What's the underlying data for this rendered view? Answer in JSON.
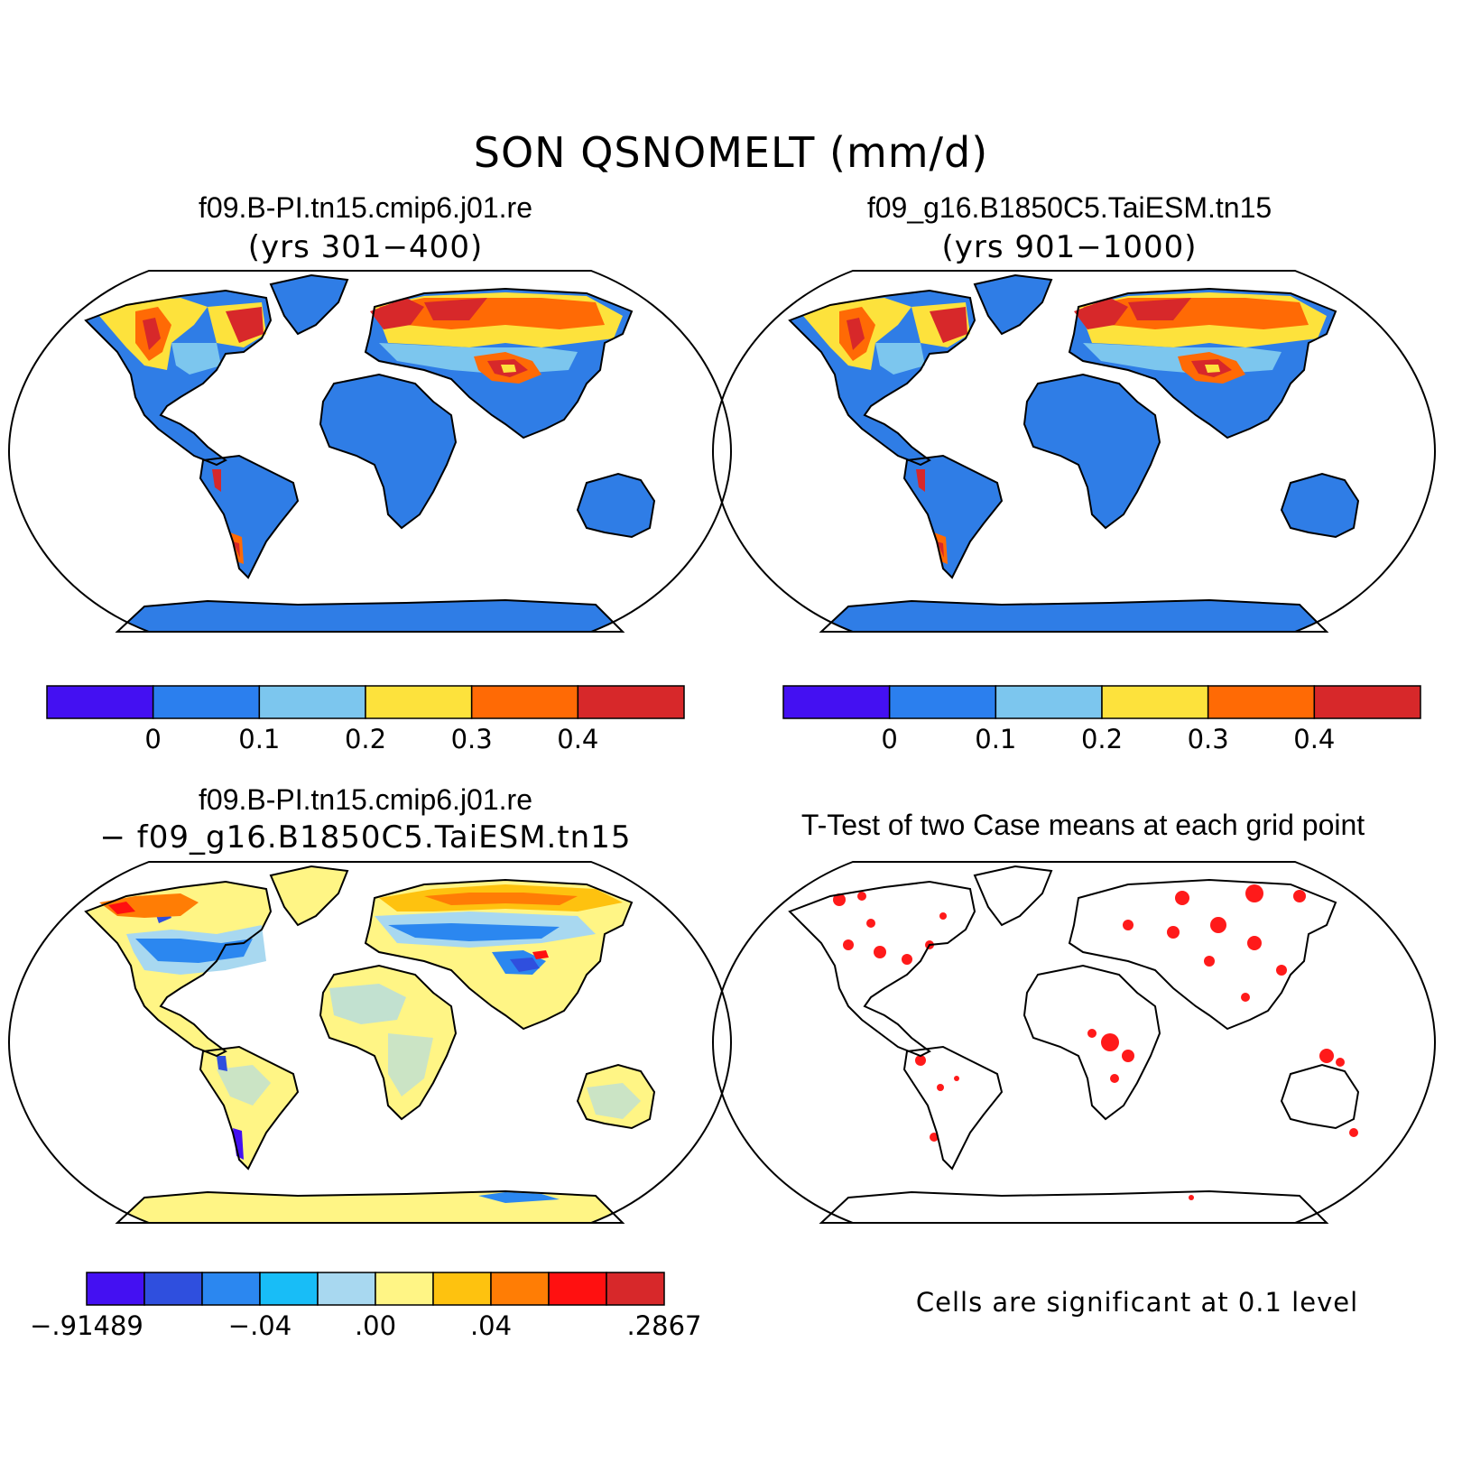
{
  "title": "SON QSNOMELT (mm/d)",
  "panels": [
    {
      "id": "case1",
      "title": "f09.B-PI.tn15.cmip6.j01.re",
      "subtitle": "(yrs 301−400)"
    },
    {
      "id": "case2",
      "title": "f09_g16.B1850C5.TaiESM.tn15",
      "subtitle": "(yrs 901−1000)"
    },
    {
      "id": "diff",
      "title": "f09.B-PI.tn15.cmip6.j01.re",
      "subtitle": "− f09_g16.B1850C5.TaiESM.tn15"
    },
    {
      "id": "ttest",
      "title": "T-Test of two Case means at each grid point",
      "note": "Cells are significant at 0.1 level"
    }
  ],
  "colorbar_abs": {
    "colors": [
      "#4410f2",
      "#2b7fee",
      "#7cc6ee",
      "#fde23c",
      "#ff6a05",
      "#d7282a"
    ],
    "tick_labels": [
      "0",
      "0.1",
      "0.2",
      "0.3",
      "0.4"
    ]
  },
  "colorbar_diff": {
    "colors": [
      "#4410f2",
      "#2f4fde",
      "#2b87f0",
      "#18bdf7",
      "#a8d8f0",
      "#fff585",
      "#fec20f",
      "#ff7d05",
      "#ff1010",
      "#d7282a"
    ],
    "tick_labels": [
      ".91489 (neg)",
      "-.04",
      ".00",
      ".04",
      ".2867"
    ],
    "tick_text": [
      "−.91489",
      "−.04",
      ".00",
      ".04",
      ".2867"
    ]
  },
  "map_colors": {
    "ocean": "#ffffff",
    "land_base_abs": "#2f7de6",
    "land_base_diff": "#fff585",
    "significant": "#ff1a1a"
  }
}
